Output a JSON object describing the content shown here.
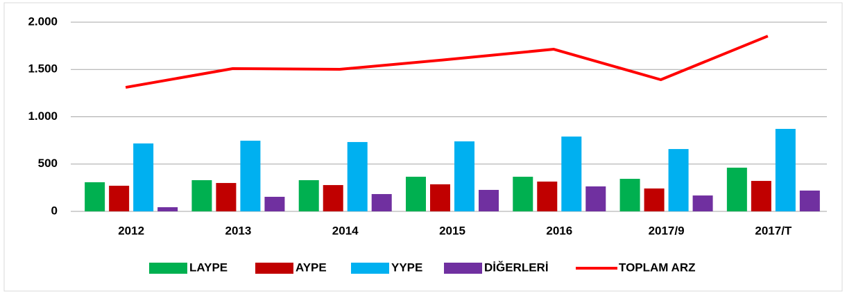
{
  "chart_data": {
    "type": "bar_line",
    "categories": [
      "2012",
      "2013",
      "2014",
      "2015",
      "2016",
      "2017/9",
      "2017/T"
    ],
    "series": [
      {
        "name": "LAYPE",
        "color": "#00b050",
        "type": "bar",
        "values": [
          308,
          330,
          330,
          366,
          366,
          344,
          462
        ]
      },
      {
        "name": "AYPE",
        "color": "#c00000",
        "type": "bar",
        "values": [
          271,
          300,
          278,
          286,
          315,
          242,
          322
        ]
      },
      {
        "name": "YYPE",
        "color": "#00b0f0",
        "type": "bar",
        "values": [
          718,
          747,
          733,
          740,
          791,
          659,
          872
        ]
      },
      {
        "name": "DİĞERLERİ",
        "color": "#7030a0",
        "type": "bar",
        "values": [
          44,
          154,
          183,
          227,
          264,
          168,
          220
        ]
      },
      {
        "name": "TOPLAM ARZ",
        "color": "#ff0000",
        "type": "line",
        "values": [
          1311,
          1509,
          1502,
          1604,
          1714,
          1392,
          1853
        ]
      }
    ],
    "ylim": [
      0,
      2000
    ],
    "yticks": [
      0,
      500,
      {
        "value": 1000,
        "label": "1.000"
      },
      {
        "value": 1500,
        "label": "1.500"
      },
      {
        "value": 2000,
        "label": "2.000"
      }
    ],
    "grid": true,
    "legend": "bottom"
  }
}
